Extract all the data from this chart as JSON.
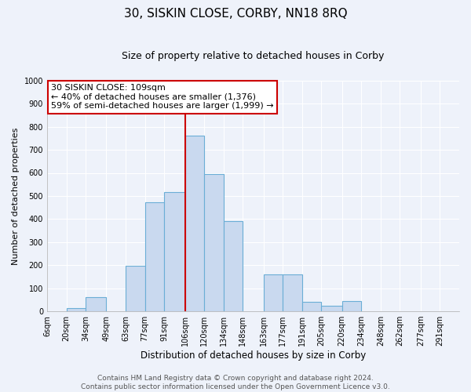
{
  "title": "30, SISKIN CLOSE, CORBY, NN18 8RQ",
  "subtitle": "Size of property relative to detached houses in Corby",
  "xlabel": "Distribution of detached houses by size in Corby",
  "ylabel": "Number of detached properties",
  "bin_labels": [
    "6sqm",
    "20sqm",
    "34sqm",
    "49sqm",
    "63sqm",
    "77sqm",
    "91sqm",
    "106sqm",
    "120sqm",
    "134sqm",
    "148sqm",
    "163sqm",
    "177sqm",
    "191sqm",
    "205sqm",
    "220sqm",
    "234sqm",
    "248sqm",
    "262sqm",
    "277sqm",
    "291sqm"
  ],
  "bin_edges": [
    6,
    20,
    34,
    49,
    63,
    77,
    91,
    106,
    120,
    134,
    148,
    163,
    177,
    191,
    205,
    220,
    234,
    248,
    262,
    277,
    291
  ],
  "bar_heights": [
    0,
    15,
    62,
    0,
    197,
    472,
    517,
    760,
    595,
    390,
    0,
    160,
    160,
    42,
    25,
    46,
    0,
    0,
    0,
    0,
    0
  ],
  "bar_color": "#c9d9ef",
  "bar_edgecolor": "#6baed6",
  "bar_linewidth": 0.8,
  "vline_x": 106,
  "vline_color": "#cc0000",
  "vline_linewidth": 1.5,
  "annotation_text": "30 SISKIN CLOSE: 109sqm\n← 40% of detached houses are smaller (1,376)\n59% of semi-detached houses are larger (1,999) →",
  "ylim": [
    0,
    1000
  ],
  "yticks": [
    0,
    100,
    200,
    300,
    400,
    500,
    600,
    700,
    800,
    900,
    1000
  ],
  "background_color": "#eef2fa",
  "plot_bg_color": "#eef2fa",
  "grid_color": "#ffffff",
  "title_fontsize": 11,
  "subtitle_fontsize": 9,
  "annotation_fontsize": 8,
  "ylabel_fontsize": 8,
  "xlabel_fontsize": 8.5,
  "tick_fontsize": 7,
  "footer_text": "Contains HM Land Registry data © Crown copyright and database right 2024.\nContains public sector information licensed under the Open Government Licence v3.0.",
  "footer_fontsize": 6.5
}
